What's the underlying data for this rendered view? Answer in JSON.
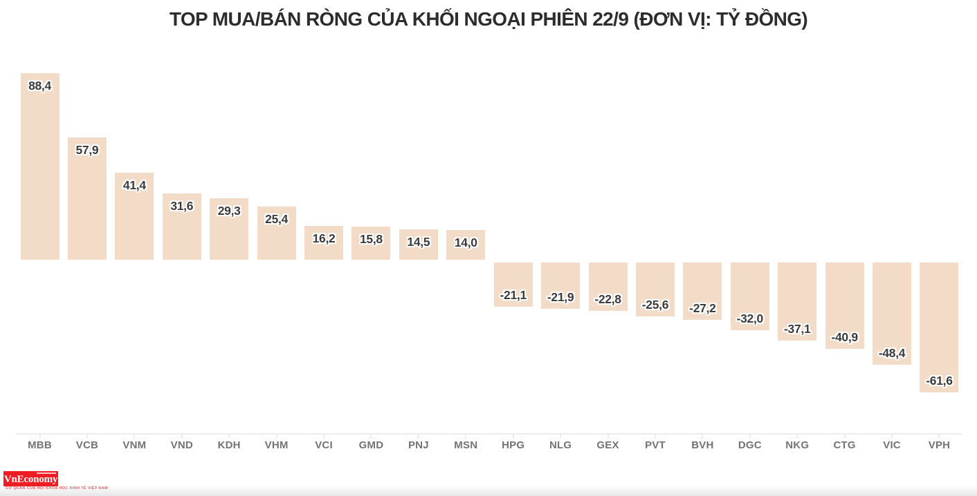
{
  "title": "TOP MUA/BÁN RÒNG CỦA KHỐI NGOẠI PHIÊN 22/9 (ĐƠN VỊ: TỶ ĐỒNG)",
  "chart_data": {
    "type": "bar",
    "title": "TOP MUA/BÁN RÒNG CỦA KHỐI NGOẠI PHIÊN 22/9 (ĐƠN VỊ: TỶ ĐỒNG)",
    "xlabel": "",
    "ylabel": "",
    "unit": "tỷ đồng",
    "categories": [
      "MBB",
      "VCB",
      "VNM",
      "VND",
      "KDH",
      "VHM",
      "VCI",
      "GMD",
      "PNJ",
      "MSN",
      "HPG",
      "NLG",
      "GEX",
      "PVT",
      "BVH",
      "DGC",
      "NKG",
      "CTG",
      "VIC",
      "VPH"
    ],
    "values": [
      88.4,
      57.9,
      41.4,
      31.6,
      29.3,
      25.4,
      16.2,
      15.8,
      14.5,
      14.0,
      -21.1,
      -21.9,
      -22.8,
      -25.6,
      -27.2,
      -32.0,
      -37.1,
      -40.9,
      -48.4,
      -61.6
    ],
    "value_labels": [
      "88,4",
      "57,9",
      "41,4",
      "31,6",
      "29,3",
      "25,4",
      "16,2",
      "15,8",
      "14,5",
      "14,0",
      "-21,1",
      "-21,9",
      "-22,8",
      "-25,6",
      "-27,2",
      "-32,0",
      "-37,1",
      "-40,9",
      "-48,4",
      "-61,6"
    ],
    "ylim": [
      -70,
      95
    ],
    "grid": false,
    "legend": false,
    "bar_color": "#f3dcc7",
    "value_label_color": "#3b3b3b",
    "axis_color": "#ececec",
    "category_label_color": "#737373",
    "title_color": "#2d2d2d"
  },
  "footer": {
    "logo_text": "VnEconomy",
    "logo_tagline": "CƠ QUAN CỦA HỘI KHOA HỌC KINH TẾ VIỆT NAM",
    "logo_bg_color": "#ee1c23"
  }
}
